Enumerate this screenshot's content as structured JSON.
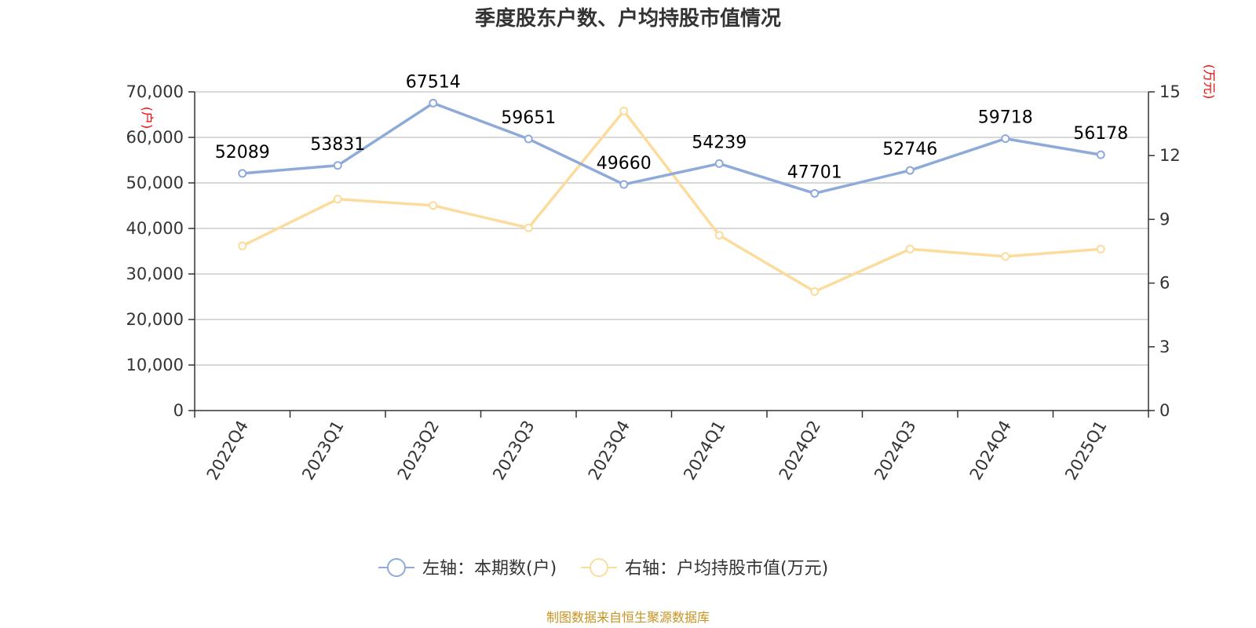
{
  "chart_data": {
    "type": "line",
    "title": "季度股东户数、户均持股市值情况",
    "categories": [
      "2022Q4",
      "2023Q1",
      "2023Q2",
      "2023Q3",
      "2023Q4",
      "2024Q1",
      "2024Q2",
      "2024Q3",
      "2024Q4",
      "2025Q1"
    ],
    "series": [
      {
        "name": "左轴：本期数(户)",
        "axis": "left",
        "color": "#8eaad8",
        "values": [
          52089,
          53831,
          67514,
          59651,
          49660,
          54239,
          47701,
          52746,
          59718,
          56178
        ],
        "labels": [
          "52089",
          "53831",
          "67514",
          "59651",
          "49660",
          "54239",
          "47701",
          "52746",
          "59718",
          "56178"
        ]
      },
      {
        "name": "右轴：户均持股市值(万元)",
        "axis": "right",
        "color": "#fcdc9c",
        "values": [
          7.75,
          9.95,
          9.65,
          8.6,
          14.1,
          8.25,
          5.6,
          7.6,
          7.25,
          7.6
        ]
      }
    ],
    "y_left": {
      "unit": "(户)",
      "ylim": [
        0,
        70000
      ],
      "ticks": [
        0,
        10000,
        20000,
        30000,
        40000,
        50000,
        60000,
        70000
      ],
      "tick_labels": [
        "0",
        "10,000",
        "20,000",
        "30,000",
        "40,000",
        "50,000",
        "60,000",
        "70,000"
      ]
    },
    "y_right": {
      "unit": "(万元)",
      "ylim": [
        0,
        15
      ],
      "ticks": [
        0,
        3,
        6,
        9,
        12,
        15
      ],
      "tick_labels": [
        "0",
        "3",
        "6",
        "9",
        "12",
        "15"
      ]
    },
    "grid": true,
    "legend": "bottom-center",
    "source": "制图数据来自恒生聚源数据库"
  }
}
